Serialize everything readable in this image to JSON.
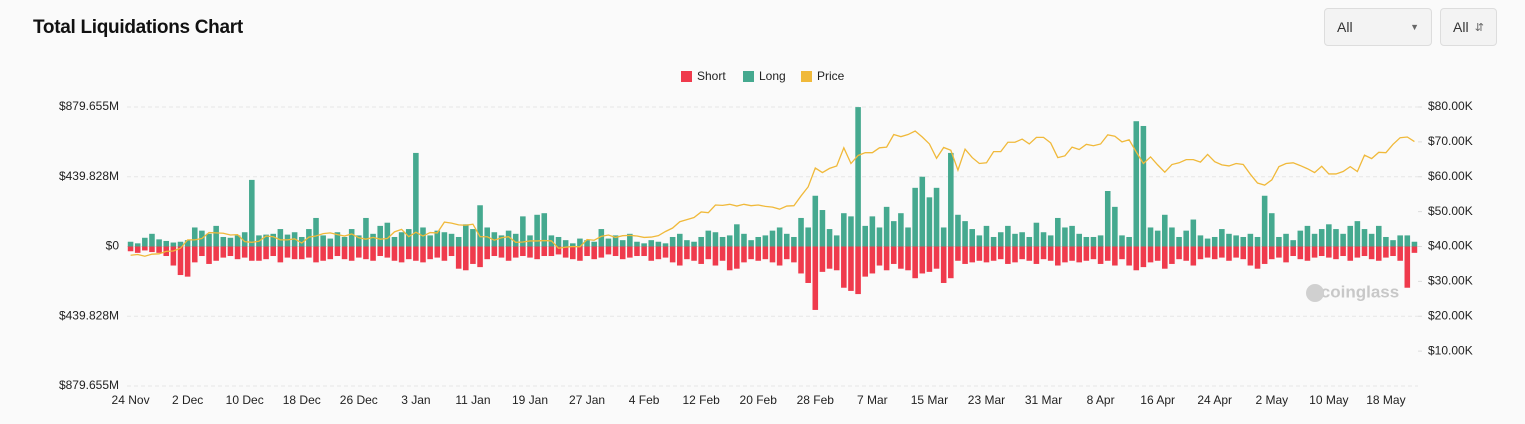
{
  "header": {
    "title": "Total Liquidations Chart",
    "controls": [
      "All",
      "All"
    ]
  },
  "chart_data": {
    "type": "bar",
    "watermark": "coinglass",
    "categories": [
      "24 Nov",
      null,
      null,
      null,
      null,
      null,
      null,
      null,
      "2 Dec",
      null,
      null,
      null,
      null,
      null,
      null,
      null,
      "10 Dec",
      null,
      null,
      null,
      null,
      null,
      null,
      null,
      "18 Dec",
      null,
      null,
      null,
      null,
      null,
      null,
      null,
      "26 Dec",
      null,
      null,
      null,
      null,
      null,
      null,
      null,
      "3 Jan",
      null,
      null,
      null,
      null,
      null,
      null,
      null,
      "11 Jan",
      null,
      null,
      null,
      null,
      null,
      null,
      null,
      "19 Jan",
      null,
      null,
      null,
      null,
      null,
      null,
      null,
      "27 Jan",
      null,
      null,
      null,
      null,
      null,
      null,
      null,
      "4 Feb",
      null,
      null,
      null,
      null,
      null,
      null,
      null,
      "12 Feb",
      null,
      null,
      null,
      null,
      null,
      null,
      null,
      "20 Feb",
      null,
      null,
      null,
      null,
      null,
      null,
      null,
      "28 Feb",
      null,
      null,
      null,
      null,
      null,
      null,
      null,
      "7 Mar",
      null,
      null,
      null,
      null,
      null,
      null,
      null,
      "15 Mar",
      null,
      null,
      null,
      null,
      null,
      null,
      null,
      "23 Mar",
      null,
      null,
      null,
      null,
      null,
      null,
      null,
      "31 Mar",
      null,
      null,
      null,
      null,
      null,
      null,
      null,
      "8 Apr",
      null,
      null,
      null,
      null,
      null,
      null,
      null,
      "16 Apr",
      null,
      null,
      null,
      null,
      null,
      null,
      null,
      "24 Apr",
      null,
      null,
      null,
      null,
      null,
      null,
      null,
      "2 May",
      null,
      null,
      null,
      null,
      null,
      null,
      null,
      "10 May",
      null,
      null,
      null,
      null,
      null,
      null,
      null,
      "18 May",
      null,
      null,
      null,
      null
    ],
    "series": [
      {
        "name": "Short",
        "color": "#ef3a4c",
        "type": "bar",
        "values": [
          -30,
          -40,
          -25,
          -35,
          -40,
          -60,
          -120,
          -180,
          -190,
          -100,
          -60,
          -110,
          -90,
          -70,
          -60,
          -80,
          -70,
          -90,
          -90,
          -80,
          -60,
          -100,
          -70,
          -80,
          -80,
          -70,
          -100,
          -90,
          -80,
          -60,
          -80,
          -90,
          -70,
          -80,
          -90,
          -60,
          -70,
          -90,
          -100,
          -80,
          -90,
          -100,
          -80,
          -70,
          -90,
          -60,
          -140,
          -150,
          -110,
          -130,
          -80,
          -60,
          -70,
          -90,
          -70,
          -60,
          -70,
          -80,
          -60,
          -60,
          -50,
          -70,
          -80,
          -90,
          -60,
          -80,
          -70,
          -50,
          -60,
          -80,
          -70,
          -60,
          -60,
          -90,
          -80,
          -70,
          -100,
          -120,
          -80,
          -90,
          -110,
          -80,
          -120,
          -90,
          -150,
          -140,
          -100,
          -80,
          -90,
          -80,
          -100,
          -120,
          -80,
          -100,
          -170,
          -230,
          -400,
          -160,
          -140,
          -150,
          -260,
          -280,
          -300,
          -190,
          -170,
          -120,
          -150,
          -110,
          -140,
          -150,
          -200,
          -170,
          -160,
          -140,
          -230,
          -200,
          -90,
          -110,
          -100,
          -90,
          -100,
          -90,
          -80,
          -110,
          -100,
          -80,
          -90,
          -110,
          -80,
          -90,
          -120,
          -100,
          -90,
          -100,
          -90,
          -80,
          -110,
          -90,
          -120,
          -80,
          -120,
          -150,
          -130,
          -100,
          -90,
          -140,
          -110,
          -80,
          -90,
          -120,
          -80,
          -70,
          -80,
          -70,
          -90,
          -70,
          -80,
          -120,
          -140,
          -110,
          -80,
          -70,
          -100,
          -60,
          -80,
          -90,
          -70,
          -60,
          -70,
          -80,
          -60,
          -90,
          -70,
          -60,
          -80,
          -90,
          -70,
          -60,
          -90,
          -260,
          -40
        ]
      },
      {
        "name": "Long",
        "color": "#45a98f",
        "type": "bar",
        "values": [
          30,
          20,
          55,
          80,
          45,
          35,
          25,
          30,
          40,
          120,
          100,
          80,
          130,
          60,
          55,
          70,
          90,
          420,
          70,
          75,
          80,
          110,
          75,
          90,
          60,
          110,
          180,
          70,
          50,
          90,
          60,
          110,
          70,
          180,
          80,
          130,
          150,
          60,
          90,
          110,
          590,
          120,
          70,
          100,
          90,
          80,
          60,
          140,
          110,
          260,
          120,
          90,
          70,
          100,
          80,
          190,
          70,
          200,
          210,
          70,
          60,
          40,
          20,
          50,
          40,
          30,
          110,
          50,
          70,
          40,
          80,
          30,
          20,
          40,
          30,
          20,
          60,
          80,
          40,
          30,
          60,
          100,
          90,
          60,
          70,
          140,
          80,
          40,
          60,
          70,
          100,
          120,
          80,
          60,
          180,
          120,
          320,
          230,
          110,
          70,
          210,
          190,
          879,
          130,
          190,
          120,
          250,
          160,
          210,
          120,
          370,
          440,
          310,
          370,
          120,
          590,
          200,
          160,
          110,
          70,
          130,
          60,
          90,
          130,
          80,
          90,
          60,
          150,
          90,
          70,
          180,
          120,
          130,
          80,
          60,
          60,
          70,
          350,
          250,
          70,
          60,
          790,
          760,
          120,
          100,
          200,
          120,
          60,
          100,
          170,
          70,
          50,
          60,
          110,
          80,
          70,
          60,
          80,
          60,
          320,
          210,
          60,
          80,
          40,
          100,
          130,
          80,
          110,
          140,
          110,
          80,
          130,
          160,
          110,
          80,
          130,
          60,
          40,
          70,
          70,
          30
        ]
      },
      {
        "name": "Price",
        "color": "#f0b93a",
        "type": "line",
        "axis": "y2",
        "values": [
          37500,
          37700,
          37200,
          37800,
          37900,
          38600,
          38700,
          39500,
          41900,
          41900,
          42300,
          44000,
          43900,
          43800,
          43300,
          43400,
          41400,
          41200,
          41500,
          43000,
          42800,
          41900,
          41900,
          42200,
          41000,
          42700,
          43000,
          43700,
          43900,
          43400,
          43000,
          43600,
          42500,
          42100,
          42600,
          42100,
          42300,
          44200,
          44900,
          42800,
          44100,
          43000,
          44000,
          43900,
          47000,
          46700,
          46200,
          46100,
          46400,
          42800,
          42800,
          41800,
          42500,
          42800,
          41200,
          41300,
          41600,
          41600,
          41700,
          41600,
          39500,
          39800,
          40000,
          39900,
          42000,
          41800,
          42900,
          43300,
          42600,
          43100,
          43200,
          43000,
          42600,
          42700,
          43100,
          44300,
          45300,
          47100,
          47700,
          48300,
          49900,
          49700,
          51900,
          51800,
          52100,
          51600,
          52100,
          51700,
          51900,
          51500,
          51300,
          50700,
          51600,
          51700,
          54500,
          57100,
          62500,
          61200,
          62400,
          63100,
          68300,
          63800,
          66100,
          66900,
          66900,
          68300,
          68500,
          72100,
          71500,
          72100,
          73100,
          71400,
          69400,
          65300,
          68400,
          67600,
          61900,
          67900,
          65500,
          63800,
          64000,
          67200,
          67200,
          69900,
          69900,
          70800,
          69400,
          71300,
          71300,
          69700,
          65500,
          66000,
          68500,
          67800,
          69300,
          68900,
          69400,
          72000,
          71600,
          70000,
          70600,
          67100,
          63800,
          65700,
          63400,
          61300,
          63500,
          64000,
          64900,
          64900,
          64200,
          66400,
          64300,
          63400,
          63100,
          63800,
          63500,
          60700,
          58200,
          57600,
          59100,
          62900,
          63800,
          64000,
          63200,
          62300,
          61200,
          63000,
          60800,
          60800,
          61500,
          62900,
          61500,
          66200,
          65200,
          67000,
          66900,
          69300,
          71200,
          71400,
          70100
        ]
      }
    ],
    "ylim": [
      -879.655,
      879.655
    ],
    "yticks": [
      {
        "value": -879.655,
        "label": "$879.655M"
      },
      {
        "value": -439.828,
        "label": "$439.828M"
      },
      {
        "value": 0,
        "label": "$0"
      },
      {
        "value": 439.828,
        "label": "$439.828M"
      },
      {
        "value": 879.655,
        "label": "$879.655M"
      }
    ],
    "y2lim": [
      0,
      80000
    ],
    "y2ticks": [
      {
        "value": 10000,
        "label": "$10.00K"
      },
      {
        "value": 20000,
        "label": "$20.00K"
      },
      {
        "value": 30000,
        "label": "$30.00K"
      },
      {
        "value": 40000,
        "label": "$40.00K"
      },
      {
        "value": 50000,
        "label": "$50.00K"
      },
      {
        "value": 60000,
        "label": "$60.00K"
      },
      {
        "value": 70000,
        "label": "$70.00K"
      },
      {
        "value": 80000,
        "label": "$80.00K"
      }
    ],
    "grid": true
  }
}
